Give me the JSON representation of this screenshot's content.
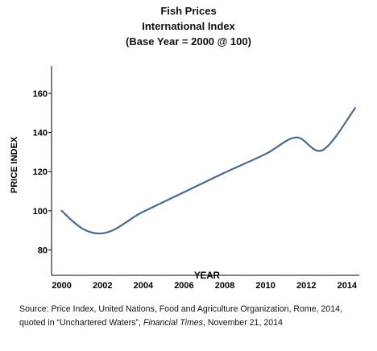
{
  "chart_data": {
    "type": "line",
    "title": "Fish Prices",
    "subtitle": "International Index",
    "subtitle2": "(Base Year = 2000 @ 100)",
    "xlabel": "YEAR",
    "ylabel": "PRICE INDEX",
    "xlim": [
      1999.5,
      2014.6
    ],
    "ylim": [
      67,
      174
    ],
    "xticks": [
      "2000",
      "2002",
      "2004",
      "2006",
      "2008",
      "2010",
      "2012",
      "2014"
    ],
    "yticks": [
      "80",
      "100",
      "120",
      "140",
      "160"
    ],
    "grid": false,
    "legend": "none",
    "line_color": "#4a6a8e",
    "series": [
      {
        "x": [
          2000,
          2000.5,
          2001,
          2001.5,
          2002,
          2002.5,
          2003,
          2003.5,
          2004,
          2006,
          2008,
          2010,
          2011.5,
          2012.8,
          2014.4
        ],
        "values": [
          100,
          95,
          91,
          88.8,
          88.5,
          90,
          93,
          96.5,
          99.5,
          109.5,
          119.5,
          129,
          137.5,
          131,
          152.5
        ]
      }
    ]
  },
  "source": {
    "prefix": "Source: Price Index, United Nations, Food and Agriculture Organization, Rome, 2014,  quoted in “Unchartered Waters”, ",
    "italic": "Financial Times",
    "suffix": ", November 21, 2014"
  }
}
